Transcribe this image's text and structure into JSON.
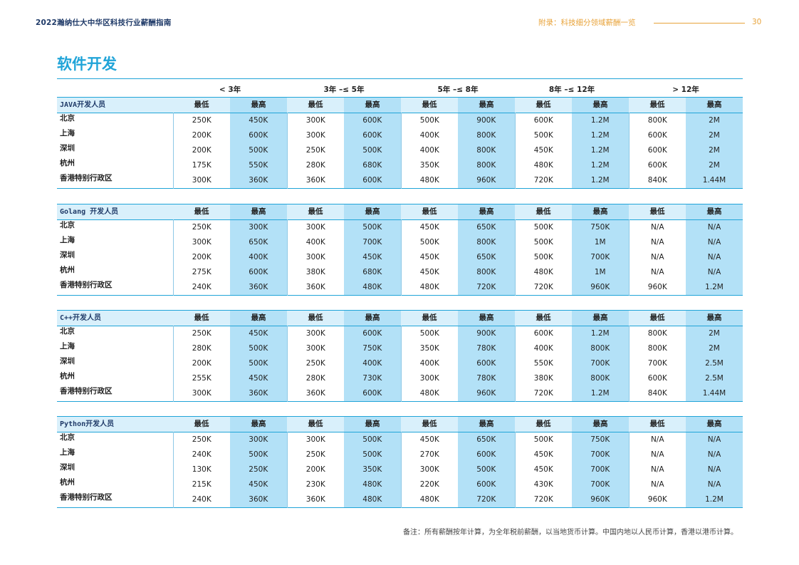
{
  "header": {
    "left_title": "2022瀚纳仕大中华区科技行业薪酬指南",
    "right_title": "附录：科技细分领域薪酬一览",
    "page_number": "30"
  },
  "section_title": "软件开发",
  "experience_groups": [
    "< 3年",
    "3年 –≤ 5年",
    "5年 –≤ 8年",
    "8年 –≤ 12年",
    "> 12年"
  ],
  "min_label": "最低",
  "max_label": "最高",
  "tables": [
    {
      "role": "JAVA开发人员",
      "rows": [
        {
          "city": "北京",
          "values": [
            "250K",
            "450K",
            "300K",
            "600K",
            "500K",
            "900K",
            "600K",
            "1.2M",
            "800K",
            "2M"
          ]
        },
        {
          "city": "上海",
          "values": [
            "200K",
            "600K",
            "300K",
            "600K",
            "400K",
            "800K",
            "500K",
            "1.2M",
            "600K",
            "2M"
          ]
        },
        {
          "city": "深圳",
          "values": [
            "200K",
            "500K",
            "250K",
            "500K",
            "400K",
            "800K",
            "450K",
            "1.2M",
            "600K",
            "2M"
          ]
        },
        {
          "city": "杭州",
          "values": [
            "175K",
            "550K",
            "280K",
            "680K",
            "350K",
            "800K",
            "480K",
            "1.2M",
            "600K",
            "2M"
          ]
        },
        {
          "city": "香港特别行政区",
          "values": [
            "300K",
            "360K",
            "360K",
            "600K",
            "480K",
            "960K",
            "720K",
            "1.2M",
            "840K",
            "1.44M"
          ]
        }
      ]
    },
    {
      "role": "Golang 开发人员",
      "rows": [
        {
          "city": "北京",
          "values": [
            "250K",
            "300K",
            "300K",
            "500K",
            "450K",
            "650K",
            "500K",
            "750K",
            "N/A",
            "N/A"
          ]
        },
        {
          "city": "上海",
          "values": [
            "300K",
            "650K",
            "400K",
            "700K",
            "500K",
            "800K",
            "500K",
            "1M",
            "N/A",
            "N/A"
          ]
        },
        {
          "city": "深圳",
          "values": [
            "200K",
            "400K",
            "300K",
            "450K",
            "450K",
            "650K",
            "500K",
            "700K",
            "N/A",
            "N/A"
          ]
        },
        {
          "city": "杭州",
          "values": [
            "275K",
            "600K",
            "380K",
            "680K",
            "450K",
            "800K",
            "480K",
            "1M",
            "N/A",
            "N/A"
          ]
        },
        {
          "city": "香港特别行政区",
          "values": [
            "240K",
            "360K",
            "360K",
            "480K",
            "480K",
            "720K",
            "720K",
            "960K",
            "960K",
            "1.2M"
          ]
        }
      ]
    },
    {
      "role": "C++开发人员",
      "rows": [
        {
          "city": "北京",
          "values": [
            "250K",
            "450K",
            "300K",
            "600K",
            "500K",
            "900K",
            "600K",
            "1.2M",
            "800K",
            "2M"
          ]
        },
        {
          "city": "上海",
          "values": [
            "280K",
            "500K",
            "300K",
            "750K",
            "350K",
            "780K",
            "400K",
            "800K",
            "800K",
            "2M"
          ]
        },
        {
          "city": "深圳",
          "values": [
            "200K",
            "500K",
            "250K",
            "400K",
            "400K",
            "600K",
            "550K",
            "700K",
            "700K",
            "2.5M"
          ]
        },
        {
          "city": "杭州",
          "values": [
            "255K",
            "450K",
            "280K",
            "730K",
            "300K",
            "780K",
            "380K",
            "800K",
            "600K",
            "2.5M"
          ]
        },
        {
          "city": "香港特别行政区",
          "values": [
            "300K",
            "360K",
            "360K",
            "600K",
            "480K",
            "960K",
            "720K",
            "1.2M",
            "840K",
            "1.44M"
          ]
        }
      ]
    },
    {
      "role": "Python开发人员",
      "rows": [
        {
          "city": "北京",
          "values": [
            "250K",
            "300K",
            "300K",
            "500K",
            "450K",
            "650K",
            "500K",
            "750K",
            "N/A",
            "N/A"
          ]
        },
        {
          "city": "上海",
          "values": [
            "240K",
            "500K",
            "250K",
            "500K",
            "270K",
            "600K",
            "450K",
            "700K",
            "N/A",
            "N/A"
          ]
        },
        {
          "city": "深圳",
          "values": [
            "130K",
            "250K",
            "200K",
            "350K",
            "300K",
            "500K",
            "450K",
            "700K",
            "N/A",
            "N/A"
          ]
        },
        {
          "city": "杭州",
          "values": [
            "215K",
            "450K",
            "230K",
            "480K",
            "220K",
            "600K",
            "430K",
            "700K",
            "N/A",
            "N/A"
          ]
        },
        {
          "city": "香港特别行政区",
          "values": [
            "240K",
            "360K",
            "360K",
            "480K",
            "480K",
            "720K",
            "720K",
            "960K",
            "960K",
            "1.2M"
          ]
        }
      ]
    }
  ],
  "footnote": "备注：所有薪酬按年计算，为全年税前薪酬，以当地货币计算。中国内地以人民币计算，香港以港币计算。"
}
